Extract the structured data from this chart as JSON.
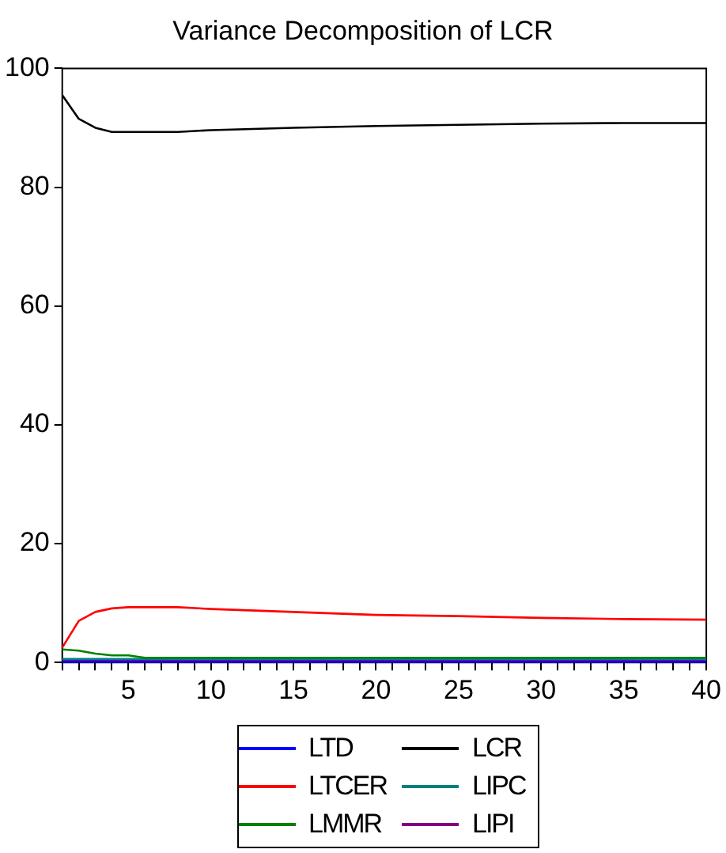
{
  "chart_data": {
    "type": "line",
    "title": "Variance Decomposition of LCR",
    "xlim": [
      1,
      40
    ],
    "ylim": [
      0,
      100
    ],
    "yticks": [
      0,
      20,
      40,
      60,
      80,
      100
    ],
    "xticks": [
      {
        "value": 1,
        "label": null
      },
      {
        "value": 2,
        "label": null
      },
      {
        "value": 3,
        "label": null
      },
      {
        "value": 4,
        "label": null
      },
      5,
      {
        "value": 6,
        "label": null
      },
      {
        "value": 7,
        "label": null
      },
      {
        "value": 8,
        "label": null
      },
      {
        "value": 9,
        "label": null
      },
      10,
      {
        "value": 11,
        "label": null
      },
      {
        "value": 12,
        "label": null
      },
      {
        "value": 13,
        "label": null
      },
      {
        "value": 14,
        "label": null
      },
      15,
      {
        "value": 16,
        "label": null
      },
      {
        "value": 17,
        "label": null
      },
      {
        "value": 18,
        "label": null
      },
      {
        "value": 19,
        "label": null
      },
      20,
      {
        "value": 21,
        "label": null
      },
      {
        "value": 22,
        "label": null
      },
      {
        "value": 23,
        "label": null
      },
      {
        "value": 24,
        "label": null
      },
      25,
      {
        "value": 26,
        "label": null
      },
      {
        "value": 27,
        "label": null
      },
      {
        "value": 28,
        "label": null
      },
      {
        "value": 29,
        "label": null
      },
      30,
      {
        "value": 31,
        "label": null
      },
      {
        "value": 32,
        "label": null
      },
      {
        "value": 33,
        "label": null
      },
      {
        "value": 34,
        "label": null
      },
      35,
      {
        "value": 36,
        "label": null
      },
      {
        "value": 37,
        "label": null
      },
      {
        "value": 38,
        "label": null
      },
      {
        "value": 39,
        "label": null
      },
      40
    ],
    "grid": false,
    "legend": "bottom",
    "marker": "none",
    "line_style": "solid",
    "series": [
      {
        "name": "LTD",
        "color": "#0000ff",
        "x": [
          1,
          10,
          20,
          30,
          40
        ],
        "values": [
          0.1,
          0.1,
          0.1,
          0.1,
          0.1
        ]
      },
      {
        "name": "LTCER",
        "color": "#ff0000",
        "x": [
          1,
          2,
          3,
          4,
          5,
          8,
          10,
          15,
          20,
          25,
          30,
          35,
          40
        ],
        "values": [
          2.5,
          7,
          8.5,
          9.1,
          9.3,
          9.3,
          9.0,
          8.5,
          8.0,
          7.8,
          7.5,
          7.3,
          7.2
        ]
      },
      {
        "name": "LMMR",
        "color": "#008000",
        "x": [
          1,
          2,
          3,
          4,
          5,
          6,
          10,
          20,
          30,
          40
        ],
        "values": [
          2.2,
          2.0,
          1.5,
          1.2,
          1.2,
          0.8,
          0.8,
          0.8,
          0.8,
          0.8
        ]
      },
      {
        "name": "LCR",
        "color": "#000000",
        "x": [
          1,
          2,
          3,
          4,
          5,
          8,
          10,
          15,
          20,
          25,
          30,
          35,
          40
        ],
        "values": [
          95.5,
          91.5,
          90,
          89.3,
          89.3,
          89.3,
          89.6,
          90,
          90.3,
          90.5,
          90.7,
          90.8,
          90.8
        ]
      },
      {
        "name": "LIPC",
        "color": "#008080",
        "x": [
          1,
          10,
          20,
          30,
          40
        ],
        "values": [
          0.6,
          0.6,
          0.6,
          0.6,
          0.6
        ]
      },
      {
        "name": "LIPI",
        "color": "#800080",
        "x": [
          1,
          10,
          15,
          20,
          30,
          40
        ],
        "values": [
          0.3,
          0.3,
          0.3,
          0.3,
          0.3,
          0.3
        ]
      }
    ]
  }
}
